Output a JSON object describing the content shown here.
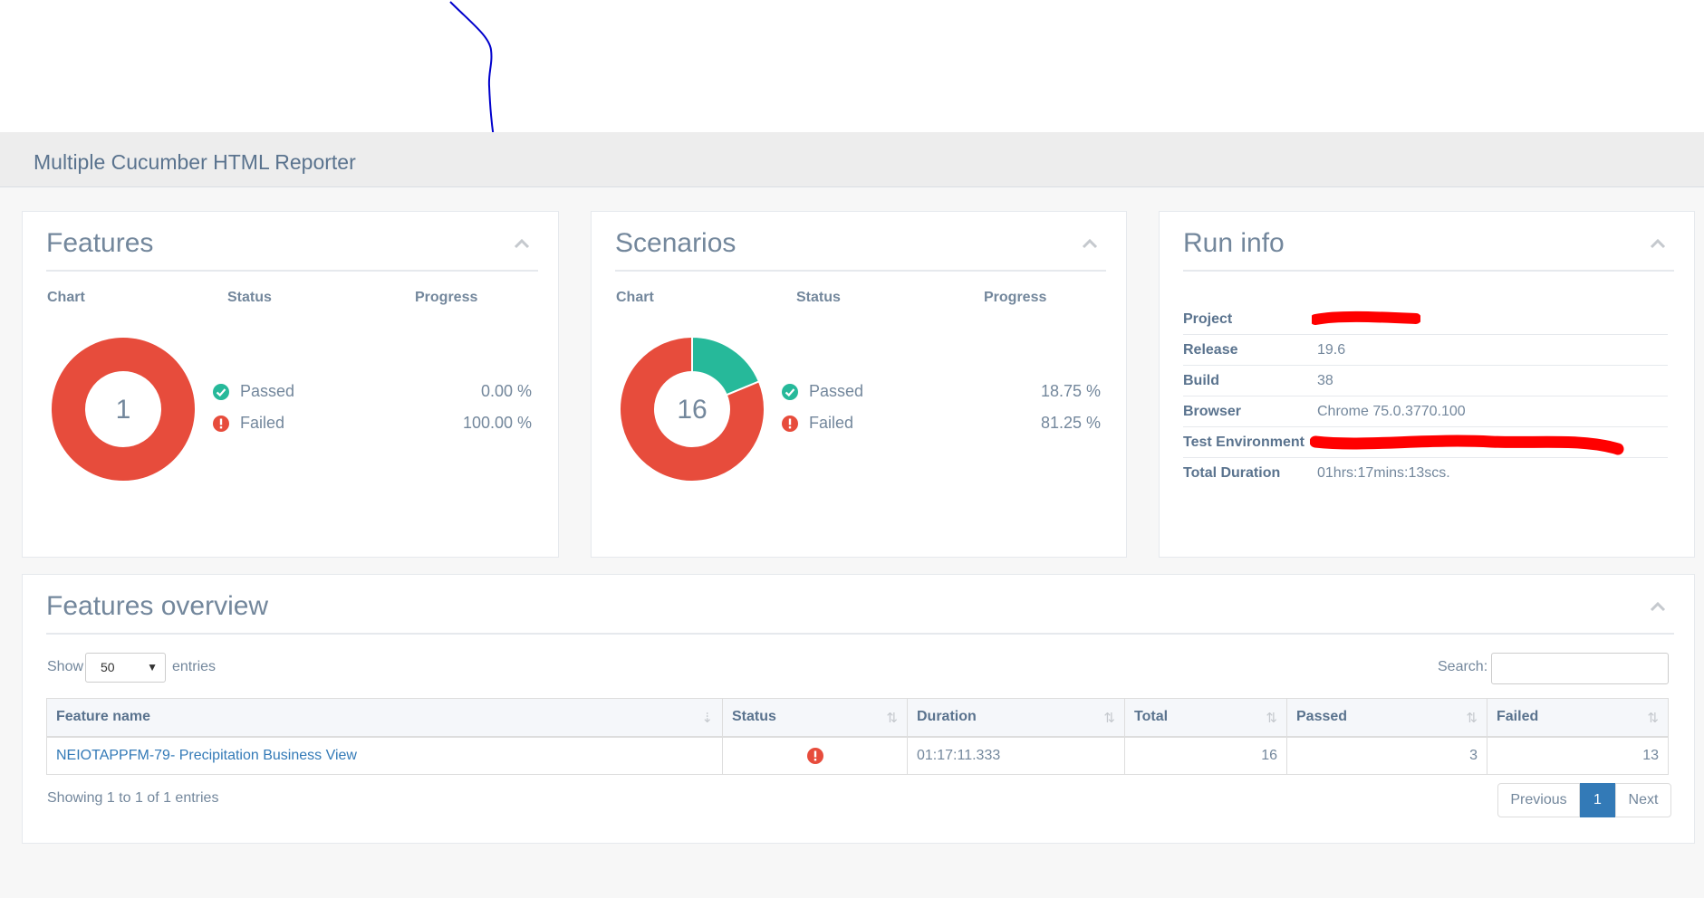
{
  "app_title": "Multiple Cucumber HTML Reporter",
  "features_panel": {
    "title": "Features",
    "headers": {
      "chart": "Chart",
      "status": "Status",
      "progress": "Progress"
    },
    "donut_center": "1",
    "rows": [
      {
        "label": "Passed",
        "value": "0.00 %"
      },
      {
        "label": "Failed",
        "value": "100.00 %"
      }
    ],
    "chart_data": {
      "type": "pie",
      "categories": [
        "Passed",
        "Failed"
      ],
      "values": [
        0.0,
        100.0
      ]
    }
  },
  "scenarios_panel": {
    "title": "Scenarios",
    "headers": {
      "chart": "Chart",
      "status": "Status",
      "progress": "Progress"
    },
    "donut_center": "16",
    "rows": [
      {
        "label": "Passed",
        "value": "18.75 %"
      },
      {
        "label": "Failed",
        "value": "81.25 %"
      }
    ],
    "chart_data": {
      "type": "pie",
      "categories": [
        "Passed",
        "Failed"
      ],
      "values": [
        18.75,
        81.25
      ]
    }
  },
  "run_info": {
    "title": "Run info",
    "rows": [
      {
        "key": "Project",
        "value": ""
      },
      {
        "key": "Release",
        "value": "19.6"
      },
      {
        "key": "Build",
        "value": "38"
      },
      {
        "key": "Browser",
        "value": "Chrome 75.0.3770.100"
      },
      {
        "key": "Test Environment",
        "value": ""
      },
      {
        "key": "Total Duration",
        "value": "01hrs:17mins:13scs."
      }
    ]
  },
  "overview": {
    "title": "Features overview",
    "show_label": "Show",
    "entries_value": "50",
    "entries_label": "entries",
    "search_label": "Search:",
    "columns": [
      "Feature name",
      "Status",
      "Duration",
      "Total",
      "Passed",
      "Failed"
    ],
    "rows": [
      {
        "name": "NEIOTAPPFM-79- Precipitation Business View",
        "duration": "01:17:11.333",
        "total": "16",
        "passed": "3",
        "failed": "13"
      }
    ],
    "info": "Showing 1 to 1 of 1 entries",
    "pager": {
      "previous": "Previous",
      "current": "1",
      "next": "Next"
    }
  },
  "colors": {
    "passed": "#26b99a",
    "failed": "#e74c3c",
    "link": "#337ab7"
  },
  "icons": {
    "passed": "check-circle-icon",
    "failed": "exclamation-circle-icon",
    "collapse": "chevron-up-icon",
    "sort": "sort-icon"
  }
}
